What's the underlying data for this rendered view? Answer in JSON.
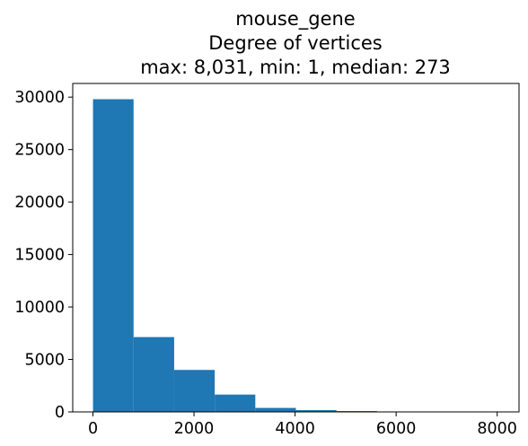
{
  "chart_data": {
    "type": "bar",
    "title_lines": [
      "mouse_gene",
      "Degree of vertices",
      "max: 8,031, min: 1, median: 273"
    ],
    "xlabel": "",
    "ylabel": "",
    "bins": [
      {
        "x0": 1,
        "x1": 804,
        "count": 29800
      },
      {
        "x0": 804,
        "x1": 1607,
        "count": 7130
      },
      {
        "x0": 1607,
        "x1": 2410,
        "count": 4000
      },
      {
        "x0": 2410,
        "x1": 3213,
        "count": 1650
      },
      {
        "x0": 3213,
        "x1": 4016,
        "count": 380
      },
      {
        "x0": 4016,
        "x1": 4819,
        "count": 170
      },
      {
        "x0": 4819,
        "x1": 5622,
        "count": 80
      },
      {
        "x0": 5622,
        "x1": 6425,
        "count": 30
      },
      {
        "x0": 6425,
        "x1": 7228,
        "count": 12
      },
      {
        "x0": 7228,
        "x1": 8031,
        "count": 5
      }
    ],
    "xlim": [
      -400,
      8432
    ],
    "ylim": [
      0,
      31300
    ],
    "x_ticks": [
      0,
      2000,
      4000,
      6000,
      8000
    ],
    "y_ticks": [
      0,
      5000,
      10000,
      15000,
      20000,
      25000,
      30000
    ],
    "bar_color": "#1f77b4",
    "grid": false,
    "legend": "none"
  }
}
